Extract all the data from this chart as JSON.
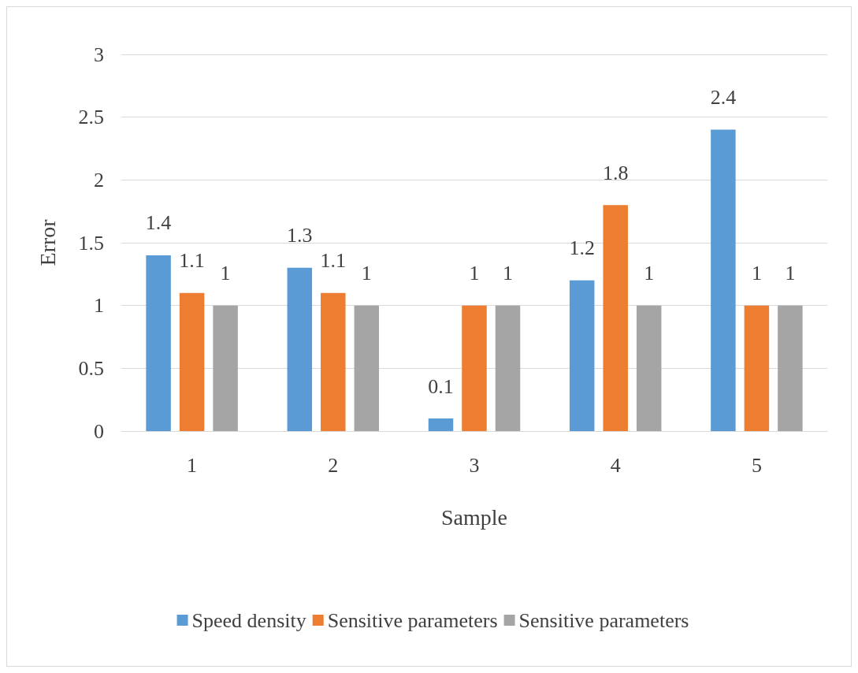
{
  "chart_data": {
    "type": "bar",
    "xlabel": "Sample",
    "ylabel": "Error",
    "categories": [
      "1",
      "2",
      "3",
      "4",
      "5"
    ],
    "series": [
      {
        "name": "Speed density",
        "color": "#5b9bd5",
        "values": [
          1.4,
          1.3,
          0.1,
          1.2,
          2.4
        ]
      },
      {
        "name": "Sensitive parameters",
        "color": "#ed7d31",
        "values": [
          1.1,
          1.1,
          1,
          1.8,
          1
        ]
      },
      {
        "name": "Sensitive parameters",
        "color": "#a5a5a5",
        "values": [
          1,
          1,
          1,
          1,
          1
        ]
      }
    ],
    "ylim": [
      0,
      3
    ],
    "yticks": [
      0,
      0.5,
      1,
      1.5,
      2,
      2.5,
      3
    ],
    "grid": "y",
    "legend": "bottom",
    "data_labels": true
  }
}
